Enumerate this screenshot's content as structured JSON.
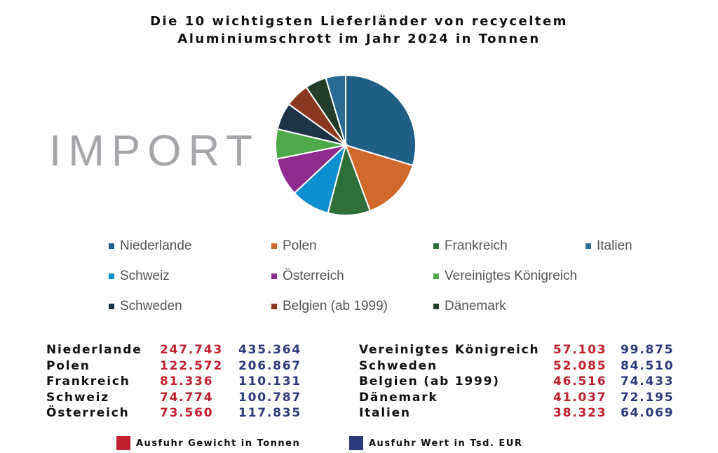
{
  "title_line1": "Die 10 wichtigsten Lieferländer von recyceltem",
  "title_line2": "Aluminiumschrott im Jahr 2024 in Tonnen",
  "side_label": "IMPORT",
  "chart_data": {
    "type": "pie",
    "title": "Die 10 wichtigsten Lieferländer von recyceltem Aluminiumschrott im Jahr 2024 in Tonnen",
    "categories": [
      "Niederlande",
      "Polen",
      "Frankreich",
      "Schweiz",
      "Österreich",
      "Vereinigtes Königreich",
      "Schweden",
      "Belgien (ab 1999)",
      "Dänemark",
      "Italien"
    ],
    "values": [
      247743,
      122572,
      81336,
      74774,
      73560,
      57103,
      52085,
      46516,
      41037,
      38323
    ],
    "colors": [
      "#1f5f85",
      "#d2692c",
      "#2f6f3a",
      "#0e8fcf",
      "#8f2b8e",
      "#4fa84a",
      "#1d3447",
      "#8b3820",
      "#233d2a",
      "#2b6b93"
    ],
    "legend_position": "bottom"
  },
  "legend": [
    {
      "label": "Niederlande",
      "color": "#1f5f85"
    },
    {
      "label": "Polen",
      "color": "#d2692c"
    },
    {
      "label": "Frankreich",
      "color": "#2f6f3a"
    },
    {
      "label": "Italien",
      "color": "#2b6b93"
    },
    {
      "label": "Schweiz",
      "color": "#0e8fcf"
    },
    {
      "label": "Österreich",
      "color": "#8f2b8e"
    },
    {
      "label": "Vereinigtes Königreich",
      "color": "#4fa84a"
    },
    {
      "label": "Schweden",
      "color": "#1d3447"
    },
    {
      "label": "Belgien (ab 1999)",
      "color": "#8b3820"
    },
    {
      "label": "Dänemark",
      "color": "#233d2a"
    }
  ],
  "table_left": [
    {
      "country": "Niederlande",
      "weight": "247.743",
      "value": "435.364"
    },
    {
      "country": "Polen",
      "weight": "122.572",
      "value": "206.867"
    },
    {
      "country": "Frankreich",
      "weight": "81.336",
      "value": "110.131"
    },
    {
      "country": "Schweiz",
      "weight": "74.774",
      "value": "100.787"
    },
    {
      "country": "Österreich",
      "weight": "73.560",
      "value": "117.835"
    }
  ],
  "table_right": [
    {
      "country": "Vereinigtes Königreich",
      "weight": "57.103",
      "value": "99.875"
    },
    {
      "country": "Schweden",
      "weight": "52.085",
      "value": "84.510"
    },
    {
      "country": "Belgien (ab 1999)",
      "weight": "46.516",
      "value": "74.433"
    },
    {
      "country": "Dänemark",
      "weight": "41.037",
      "value": "72.195"
    },
    {
      "country": "Italien",
      "weight": "38.323",
      "value": "64.069"
    }
  ],
  "footer": {
    "weight_label": "Ausfuhr Gewicht in Tonnen",
    "weight_color": "#c0202f",
    "value_label": "Ausfuhr Wert in Tsd. EUR",
    "value_color": "#2b3a7a"
  }
}
